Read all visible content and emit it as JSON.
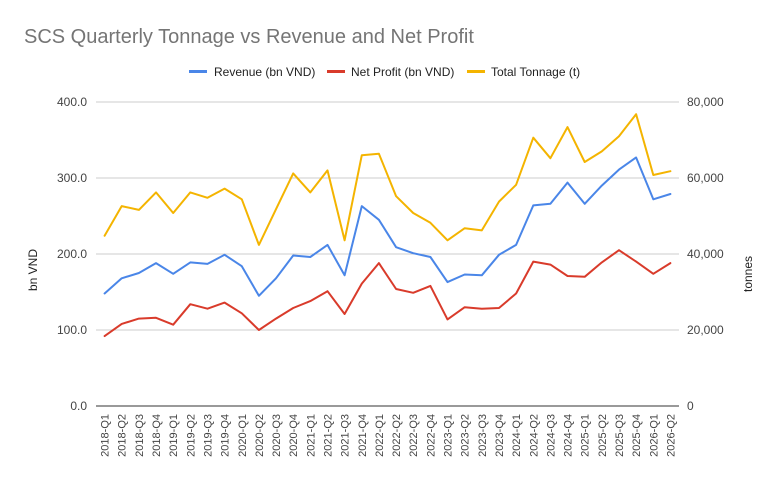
{
  "chart_data": {
    "type": "line",
    "title": "SCS Quarterly Tonnage vs Revenue and Net Profit",
    "ylabel_left": "bn VND",
    "ylabel_right": "tonnes",
    "ylim_left": [
      0,
      400
    ],
    "ylim_right": [
      0,
      80000
    ],
    "yticks_left": [
      "0.0",
      "100.0",
      "200.0",
      "300.0",
      "400.0"
    ],
    "yticks_right": [
      "0",
      "20,000",
      "40,000",
      "60,000",
      "80,000"
    ],
    "grid": true,
    "legend_position": "top",
    "categories": [
      "2018-Q1",
      "2018-Q2",
      "2018-Q3",
      "2018-Q4",
      "2019-Q1",
      "2019-Q2",
      "2019-Q3",
      "2019-Q4",
      "2020-Q1",
      "2020-Q2",
      "2020-Q3",
      "2020-Q4",
      "2021-Q1",
      "2021-Q2",
      "2021-Q3",
      "2021-Q4",
      "2022-Q1",
      "2022-Q2",
      "2022-Q3",
      "2022-Q4",
      "2023-Q1",
      "2023-Q2",
      "2023-Q3",
      "2023-Q4",
      "2024-Q1",
      "2024-Q2",
      "2024-Q3",
      "2024-Q4",
      "2025-Q1",
      "2025-Q2",
      "2025-Q3",
      "2025-Q4",
      "2026-Q1",
      "2026-Q2"
    ],
    "series": [
      {
        "name": "Revenue (bn VND)",
        "color": "#4a86e8",
        "axis": "left",
        "values": [
          148,
          168,
          175,
          188,
          174,
          189,
          187,
          199,
          184,
          145,
          168,
          198,
          196,
          212,
          172,
          263,
          245,
          209,
          201,
          196,
          163,
          173,
          172,
          199,
          212,
          264,
          266,
          294,
          266,
          290,
          311,
          327,
          272,
          279
        ]
      },
      {
        "name": "Net Profit (bn VND)",
        "color": "#d93b2b",
        "axis": "left",
        "values": [
          92,
          108,
          115,
          116,
          107,
          134,
          128,
          136,
          122,
          100,
          115,
          129,
          138,
          151,
          121,
          161,
          188,
          154,
          149,
          158,
          114,
          130,
          128,
          129,
          148,
          190,
          186,
          171,
          170,
          189,
          205,
          190,
          174,
          188
        ]
      },
      {
        "name": "Total Tonnage (t)",
        "color": "#f4b400",
        "axis": "right",
        "values": [
          44800,
          52600,
          51600,
          56200,
          50800,
          56200,
          54800,
          57200,
          54400,
          42400,
          51800,
          61200,
          56200,
          62000,
          43600,
          66000,
          66400,
          55200,
          50800,
          48200,
          43600,
          46800,
          46200,
          53800,
          58200,
          70600,
          65200,
          73400,
          64200,
          67000,
          71000,
          76800,
          60800,
          61800
        ]
      }
    ]
  }
}
